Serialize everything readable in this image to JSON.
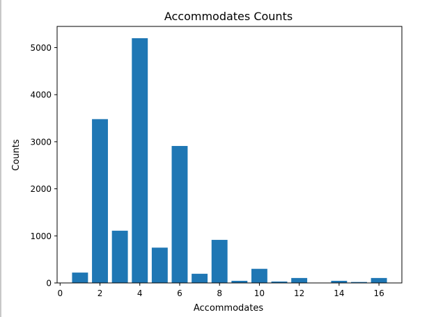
{
  "chart_data": {
    "type": "bar",
    "title": "Accommodates Counts",
    "xlabel": "Accommodates",
    "ylabel": "Counts",
    "categories": [
      1,
      2,
      3,
      4,
      5,
      6,
      7,
      8,
      9,
      10,
      11,
      12,
      14,
      15,
      16
    ],
    "values": [
      220,
      3480,
      1110,
      5200,
      750,
      2910,
      195,
      915,
      45,
      300,
      30,
      105,
      45,
      20,
      105
    ],
    "xlim": [
      -0.15,
      17.15
    ],
    "ylim": [
      0,
      5450
    ],
    "xticks": [
      0,
      2,
      4,
      6,
      8,
      10,
      12,
      14,
      16
    ],
    "yticks": [
      0,
      1000,
      2000,
      3000,
      4000,
      5000
    ],
    "bar_width": 0.8,
    "bar_color": "#1f77b4",
    "grid": false
  }
}
